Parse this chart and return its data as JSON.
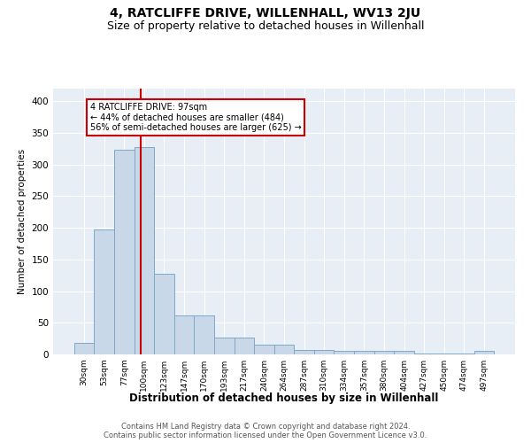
{
  "title": "4, RATCLIFFE DRIVE, WILLENHALL, WV13 2JU",
  "subtitle": "Size of property relative to detached houses in Willenhall",
  "xlabel": "Distribution of detached houses by size in Willenhall",
  "ylabel": "Number of detached properties",
  "bin_labels": [
    "30sqm",
    "53sqm",
    "77sqm",
    "100sqm",
    "123sqm",
    "147sqm",
    "170sqm",
    "193sqm",
    "217sqm",
    "240sqm",
    "264sqm",
    "287sqm",
    "310sqm",
    "334sqm",
    "357sqm",
    "380sqm",
    "404sqm",
    "427sqm",
    "450sqm",
    "474sqm",
    "497sqm"
  ],
  "bar_heights": [
    18,
    198,
    323,
    328,
    128,
    62,
    62,
    27,
    27,
    15,
    15,
    7,
    7,
    5,
    5,
    5,
    5,
    1,
    1,
    1,
    6
  ],
  "bar_color": "#c8d8e8",
  "bar_edgecolor": "#7fa8c8",
  "annotation_title": "4 RATCLIFFE DRIVE: 97sqm",
  "annotation_line1": "← 44% of detached houses are smaller (484)",
  "annotation_line2": "56% of semi-detached houses are larger (625) →",
  "annotation_color": "#cc0000",
  "ylim": [
    0,
    420
  ],
  "yticks": [
    0,
    50,
    100,
    150,
    200,
    250,
    300,
    350,
    400
  ],
  "background_color": "#e8eef5",
  "footer_line1": "Contains HM Land Registry data © Crown copyright and database right 2024.",
  "footer_line2": "Contains public sector information licensed under the Open Government Licence v3.0.",
  "title_fontsize": 10,
  "subtitle_fontsize": 9
}
